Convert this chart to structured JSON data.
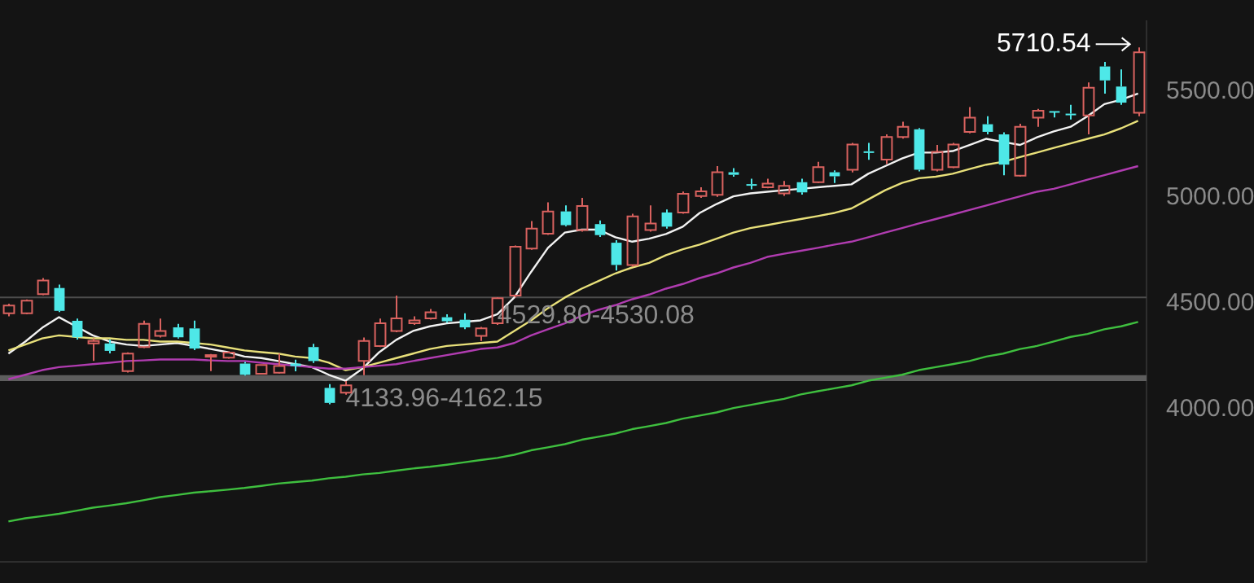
{
  "chart_data": {
    "type": "candlestick",
    "categories": [
      null,
      null,
      null,
      null,
      null,
      null,
      null,
      null,
      null,
      null,
      null,
      null,
      null,
      null,
      null,
      null,
      null,
      null,
      null,
      null,
      null,
      null,
      null,
      null,
      null,
      null,
      null,
      null,
      null,
      null,
      null,
      null,
      null,
      null,
      null,
      null,
      null,
      null,
      null,
      null,
      null,
      null,
      null,
      null,
      null,
      null,
      null,
      null,
      null,
      null,
      null,
      null,
      null,
      null,
      null,
      null,
      null,
      null,
      null,
      null,
      null,
      null,
      null,
      null,
      null,
      null,
      null,
      null
    ],
    "ohlc": [
      [
        4455,
        4500,
        4440,
        4491
      ],
      [
        4455,
        4520,
        4450,
        4514
      ],
      [
        4545,
        4621,
        4540,
        4609
      ],
      [
        4574,
        4590,
        4460,
        4466
      ],
      [
        4419,
        4430,
        4330,
        4341
      ],
      [
        4312,
        4336,
        4229,
        4324
      ],
      [
        4312,
        4330,
        4265,
        4277
      ],
      [
        4181,
        4270,
        4175,
        4264
      ],
      [
        4295,
        4420,
        4290,
        4405
      ],
      [
        4348,
        4430,
        4340,
        4371
      ],
      [
        4388,
        4405,
        4335,
        4341
      ],
      [
        4383,
        4420,
        4280,
        4288
      ],
      [
        4252,
        4262,
        4181,
        4257
      ],
      [
        4245,
        4275,
        4240,
        4269
      ],
      [
        4217,
        4225,
        4160,
        4164
      ],
      [
        4169,
        4210,
        4165,
        4210
      ],
      [
        4174,
        4264,
        4170,
        4205
      ],
      [
        4217,
        4235,
        4180,
        4205
      ],
      [
        4295,
        4310,
        4220,
        4229
      ],
      [
        4102,
        4120,
        4025,
        4031
      ],
      [
        4079,
        4133.96,
        4070,
        4114
      ],
      [
        4229,
        4340,
        4162.15,
        4324
      ],
      [
        4300,
        4430,
        4295,
        4407
      ],
      [
        4371,
        4538,
        4365,
        4431
      ],
      [
        4407,
        4440,
        4400,
        4421
      ],
      [
        4431,
        4475,
        4425,
        4459
      ],
      [
        4436,
        4450,
        4410,
        4417
      ],
      [
        4424,
        4455,
        4380,
        4388
      ],
      [
        4348,
        4390,
        4324,
        4383
      ],
      [
        4407,
        4529.8,
        4400,
        4526
      ],
      [
        4538,
        4775,
        4530.08,
        4769
      ],
      [
        4760,
        4890,
        4755,
        4855
      ],
      [
        4831,
        4979,
        4825,
        4936
      ],
      [
        4936,
        4964,
        4865,
        4871
      ],
      [
        4848,
        5000,
        4840,
        4962
      ],
      [
        4876,
        4893,
        4815,
        4824
      ],
      [
        4788,
        4800,
        4657,
        4683
      ],
      [
        4683,
        4925,
        4675,
        4912
      ],
      [
        4848,
        4964,
        4840,
        4879
      ],
      [
        4931,
        4945,
        4855,
        4864
      ],
      [
        4931,
        5030,
        4925,
        5019
      ],
      [
        5009,
        5050,
        5000,
        5031
      ],
      [
        5014,
        5150,
        5005,
        5121
      ],
      [
        5121,
        5140,
        5100,
        5109
      ],
      [
        5065,
        5090,
        5040,
        5060
      ],
      [
        5050,
        5090,
        5045,
        5067
      ],
      [
        5021,
        5080,
        5010,
        5057
      ],
      [
        5074,
        5090,
        5015,
        5026
      ],
      [
        5074,
        5170,
        5070,
        5145
      ],
      [
        5121,
        5130,
        5070,
        5102
      ],
      [
        5133,
        5260,
        5120,
        5252
      ],
      [
        5220,
        5260,
        5180,
        5215
      ],
      [
        5181,
        5300,
        5160,
        5288
      ],
      [
        5288,
        5360,
        5280,
        5336
      ],
      [
        5324,
        5330,
        5125,
        5133
      ],
      [
        5133,
        5250,
        5125,
        5217
      ],
      [
        5145,
        5260,
        5140,
        5252
      ],
      [
        5312,
        5429,
        5305,
        5379
      ],
      [
        5348,
        5386,
        5300,
        5312
      ],
      [
        5300,
        5310,
        5107,
        5157
      ],
      [
        5105,
        5350,
        5100,
        5336
      ],
      [
        5379,
        5420,
        5336,
        5412
      ],
      [
        5410,
        5410,
        5380,
        5405
      ],
      [
        5398,
        5440,
        5370,
        5393
      ],
      [
        5390,
        5545,
        5300,
        5520
      ],
      [
        5621,
        5643,
        5493,
        5555
      ],
      [
        5526,
        5607,
        5440,
        5450
      ],
      [
        5402,
        5710.54,
        5386,
        5688
      ]
    ],
    "colors": [
      "#d9625f",
      "#d9625f",
      "#d9625f",
      "#4ee8e8",
      "#4ee8e8",
      "#d9625f",
      "#4ee8e8",
      "#d9625f",
      "#d9625f",
      "#d9625f",
      "#4ee8e8",
      "#4ee8e8",
      "#d9625f",
      "#d9625f",
      "#4ee8e8",
      "#d9625f",
      "#d9625f",
      "#4ee8e8",
      "#4ee8e8",
      "#4ee8e8",
      "#d9625f",
      "#d9625f",
      "#d9625f",
      "#d9625f",
      "#d9625f",
      "#d9625f",
      "#4ee8e8",
      "#4ee8e8",
      "#d9625f",
      "#d9625f",
      "#d9625f",
      "#d9625f",
      "#d9625f",
      "#4ee8e8",
      "#d9625f",
      "#4ee8e8",
      "#4ee8e8",
      "#d9625f",
      "#d9625f",
      "#4ee8e8",
      "#d9625f",
      "#d9625f",
      "#d9625f",
      "#4ee8e8",
      "#4ee8e8",
      "#d9625f",
      "#d9625f",
      "#4ee8e8",
      "#d9625f",
      "#4ee8e8",
      "#d9625f",
      "#4ee8e8",
      "#d9625f",
      "#d9625f",
      "#4ee8e8",
      "#d9625f",
      "#d9625f",
      "#d9625f",
      "#4ee8e8",
      "#4ee8e8",
      "#d9625f",
      "#d9625f",
      "#4ee8e8",
      "#4ee8e8",
      "#d9625f",
      "#4ee8e8",
      "#4ee8e8",
      "#d9625f"
    ],
    "series": [
      {
        "type": "line",
        "color": "#3fbf3f",
        "values": [
          3471,
          3486,
          3496,
          3507,
          3521,
          3536,
          3546,
          3557,
          3571,
          3586,
          3596,
          3607,
          3614,
          3621,
          3629,
          3639,
          3650,
          3657,
          3664,
          3675,
          3682,
          3693,
          3700,
          3711,
          3721,
          3729,
          3739,
          3750,
          3761,
          3771,
          3786,
          3807,
          3821,
          3836,
          3857,
          3871,
          3886,
          3907,
          3921,
          3936,
          3957,
          3971,
          3986,
          4007,
          4021,
          4036,
          4050,
          4071,
          4086,
          4100,
          4114,
          4136,
          4150,
          4164,
          4186,
          4200,
          4214,
          4229,
          4250,
          4264,
          4286,
          4300,
          4321,
          4343,
          4357,
          4379,
          4393,
          4414
        ]
      },
      {
        "type": "line",
        "color": "#b03cb0",
        "values": [
          4143,
          4164,
          4186,
          4200,
          4207,
          4214,
          4221,
          4229,
          4232,
          4236,
          4236,
          4236,
          4232,
          4229,
          4229,
          4221,
          4214,
          4207,
          4200,
          4193,
          4193,
          4200,
          4207,
          4214,
          4229,
          4243,
          4257,
          4271,
          4286,
          4293,
          4314,
          4350,
          4379,
          4407,
          4443,
          4471,
          4493,
          4521,
          4543,
          4571,
          4593,
          4621,
          4643,
          4671,
          4693,
          4721,
          4736,
          4750,
          4764,
          4779,
          4793,
          4814,
          4836,
          4857,
          4879,
          4900,
          4921,
          4943,
          4964,
          4986,
          5007,
          5029,
          5043,
          5064,
          5086,
          5107,
          5129,
          5150
        ]
      },
      {
        "type": "line",
        "color": "#e8e07a",
        "values": [
          4279,
          4307,
          4336,
          4350,
          4343,
          4336,
          4336,
          4329,
          4329,
          4321,
          4321,
          4314,
          4307,
          4293,
          4279,
          4271,
          4264,
          4250,
          4243,
          4221,
          4186,
          4200,
          4221,
          4243,
          4264,
          4286,
          4300,
          4307,
          4314,
          4321,
          4371,
          4421,
          4479,
          4529,
          4571,
          4607,
          4643,
          4671,
          4693,
          4729,
          4757,
          4779,
          4807,
          4836,
          4857,
          4871,
          4886,
          4900,
          4914,
          4929,
          4950,
          4993,
          5036,
          5071,
          5093,
          5100,
          5114,
          5136,
          5157,
          5171,
          5193,
          5214,
          5236,
          5257,
          5279,
          5300,
          5329,
          5364
        ]
      },
      {
        "type": "line",
        "color": "#f2f2f2",
        "values": [
          4264,
          4321,
          4386,
          4436,
          4393,
          4350,
          4321,
          4307,
          4300,
          4307,
          4314,
          4300,
          4286,
          4271,
          4250,
          4243,
          4229,
          4214,
          4200,
          4164,
          4136,
          4193,
          4271,
          4329,
          4371,
          4393,
          4407,
          4414,
          4421,
          4450,
          4529,
          4650,
          4764,
          4836,
          4850,
          4850,
          4814,
          4793,
          4807,
          4829,
          4864,
          4929,
          4971,
          5007,
          5021,
          5029,
          5036,
          5043,
          5050,
          5057,
          5064,
          5114,
          5150,
          5186,
          5214,
          5214,
          5221,
          5250,
          5279,
          5264,
          5250,
          5286,
          5314,
          5336,
          5386,
          5443,
          5464,
          5493
        ]
      }
    ],
    "ylim": [
      3280,
      5835
    ],
    "yticks": [
      {
        "value": 4000,
        "label": "4000.00"
      },
      {
        "value": 4500,
        "label": "4500.00"
      },
      {
        "value": 5000,
        "label": "5000.00"
      },
      {
        "value": 5500,
        "label": "5500.00"
      }
    ],
    "tick_labels": "y",
    "bands": [
      {
        "axis": "y",
        "from": 4529.8,
        "to": 4530.08,
        "label": "4529.80-4530.08",
        "color": "#4d4d4d"
      },
      {
        "axis": "y",
        "from": 4133.96,
        "to": 4162.15,
        "label": "4133.96-4162.15",
        "color": "#5e5e5e"
      }
    ],
    "annotations": [
      "5710.54"
    ]
  }
}
